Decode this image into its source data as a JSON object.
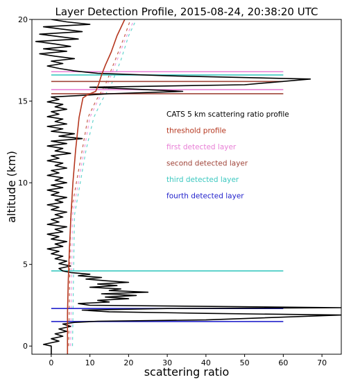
{
  "chart_data": {
    "type": "line",
    "title": "Layer Detection Profile, 2015-08-24, 20:38:20 UTC",
    "xlabel": "scattering ratio",
    "ylabel": "altitude (km)",
    "xlim": [
      -5,
      75
    ],
    "ylim": [
      -0.5,
      20
    ],
    "xticks": [
      0,
      10,
      20,
      30,
      40,
      50,
      60,
      70
    ],
    "yticks": [
      0,
      5,
      10,
      15,
      20
    ],
    "xtick_labels": [
      "0",
      "10",
      "20",
      "30",
      "40",
      "50",
      "60",
      "70"
    ],
    "ytick_labels": [
      "0",
      "5",
      "10",
      "15",
      "20"
    ],
    "grid": false,
    "legend_placement": "center-right",
    "series": [
      {
        "name": "CATS 5 km scattering ratio profile",
        "color": "#000000",
        "style": "solid",
        "points": [
          [
            0,
            -0.5
          ],
          [
            0,
            0.0
          ],
          [
            -2,
            0.1
          ],
          [
            0,
            0.2
          ],
          [
            2,
            0.3
          ],
          [
            0,
            0.45
          ],
          [
            3,
            0.6
          ],
          [
            1,
            0.75
          ],
          [
            4,
            0.9
          ],
          [
            2,
            1.05
          ],
          [
            5,
            1.2
          ],
          [
            3,
            1.35
          ],
          [
            6,
            1.45
          ],
          [
            12,
            1.52
          ],
          [
            40,
            1.6
          ],
          [
            75,
            1.9
          ],
          [
            40,
            2.0
          ],
          [
            15,
            2.1
          ],
          [
            8,
            2.2
          ],
          [
            30,
            2.3
          ],
          [
            75,
            2.35
          ],
          [
            30,
            2.45
          ],
          [
            10,
            2.5
          ],
          [
            7,
            2.6
          ],
          [
            15,
            2.7
          ],
          [
            12,
            2.8
          ],
          [
            20,
            2.9
          ],
          [
            14,
            3.0
          ],
          [
            22,
            3.1
          ],
          [
            13,
            3.2
          ],
          [
            25,
            3.3
          ],
          [
            15,
            3.4
          ],
          [
            18,
            3.5
          ],
          [
            10,
            3.6
          ],
          [
            17,
            3.7
          ],
          [
            12,
            3.8
          ],
          [
            20,
            3.9
          ],
          [
            14,
            4.0
          ],
          [
            9,
            4.1
          ],
          [
            13,
            4.2
          ],
          [
            7,
            4.3
          ],
          [
            10,
            4.4
          ],
          [
            5,
            4.5
          ],
          [
            3,
            4.6
          ],
          [
            2,
            4.75
          ],
          [
            5,
            4.9
          ],
          [
            2,
            5.05
          ],
          [
            4,
            5.2
          ],
          [
            1,
            5.35
          ],
          [
            3,
            5.5
          ],
          [
            0,
            5.65
          ],
          [
            2,
            5.8
          ],
          [
            -1,
            5.95
          ],
          [
            3,
            6.1
          ],
          [
            1,
            6.25
          ],
          [
            4,
            6.4
          ],
          [
            0,
            6.55
          ],
          [
            2,
            6.7
          ],
          [
            -1,
            6.85
          ],
          [
            3,
            7.0
          ],
          [
            1,
            7.15
          ],
          [
            4,
            7.3
          ],
          [
            -1,
            7.45
          ],
          [
            2,
            7.6
          ],
          [
            0,
            7.75
          ],
          [
            3,
            7.9
          ],
          [
            1,
            8.05
          ],
          [
            4,
            8.2
          ],
          [
            0,
            8.35
          ],
          [
            2,
            8.5
          ],
          [
            -1,
            8.65
          ],
          [
            3,
            8.8
          ],
          [
            1,
            8.95
          ],
          [
            4,
            9.1
          ],
          [
            0,
            9.25
          ],
          [
            2,
            9.4
          ],
          [
            -1,
            9.55
          ],
          [
            3,
            9.7
          ],
          [
            0,
            9.85
          ],
          [
            4,
            10.0
          ],
          [
            1,
            10.15
          ],
          [
            3,
            10.3
          ],
          [
            -1,
            10.45
          ],
          [
            2,
            10.6
          ],
          [
            0,
            10.75
          ],
          [
            4,
            10.9
          ],
          [
            1,
            11.05
          ],
          [
            3,
            11.2
          ],
          [
            -1,
            11.35
          ],
          [
            2,
            11.5
          ],
          [
            0,
            11.65
          ],
          [
            5,
            11.8
          ],
          [
            1,
            11.95
          ],
          [
            3,
            12.1
          ],
          [
            -1,
            12.25
          ],
          [
            4,
            12.4
          ],
          [
            0,
            12.55
          ],
          [
            8,
            12.7
          ],
          [
            2,
            12.85
          ],
          [
            6,
            13.0
          ],
          [
            0,
            13.15
          ],
          [
            3,
            13.3
          ],
          [
            -1,
            13.45
          ],
          [
            4,
            13.6
          ],
          [
            1,
            13.75
          ],
          [
            3,
            13.9
          ],
          [
            -1,
            14.05
          ],
          [
            2,
            14.2
          ],
          [
            0,
            14.35
          ],
          [
            4,
            14.5
          ],
          [
            1,
            14.65
          ],
          [
            3,
            14.8
          ],
          [
            -1,
            14.95
          ],
          [
            2,
            15.1
          ],
          [
            0,
            15.25
          ],
          [
            8,
            15.35
          ],
          [
            15,
            15.45
          ],
          [
            34,
            15.6
          ],
          [
            20,
            15.75
          ],
          [
            10,
            15.85
          ],
          [
            50,
            16.0
          ],
          [
            67,
            16.35
          ],
          [
            30,
            16.55
          ],
          [
            12,
            16.7
          ],
          [
            6,
            16.85
          ],
          [
            2,
            17.0
          ],
          [
            -1,
            17.15
          ],
          [
            3,
            17.3
          ],
          [
            0,
            17.45
          ],
          [
            6,
            17.6
          ],
          [
            1,
            17.75
          ],
          [
            -3,
            17.9
          ],
          [
            4,
            18.05
          ],
          [
            -2,
            18.2
          ],
          [
            5,
            18.35
          ],
          [
            1,
            18.5
          ],
          [
            -4,
            18.65
          ],
          [
            7,
            18.8
          ],
          [
            2,
            18.95
          ],
          [
            -3,
            19.1
          ],
          [
            8,
            19.25
          ],
          [
            3,
            19.4
          ],
          [
            -2,
            19.55
          ],
          [
            10,
            19.7
          ],
          [
            4,
            19.85
          ],
          [
            0,
            20.0
          ]
        ]
      },
      {
        "name": "threshold profile",
        "color": "#b5361e",
        "style": "solid",
        "points": [
          [
            4.2,
            -0.5
          ],
          [
            4.2,
            2.0
          ],
          [
            4.4,
            4.0
          ],
          [
            4.7,
            6.0
          ],
          [
            5.1,
            8.0
          ],
          [
            5.6,
            10.0
          ],
          [
            6.3,
            12.0
          ],
          [
            7.2,
            14.0
          ],
          [
            8.2,
            15.2
          ],
          [
            9.5,
            15.4
          ],
          [
            11.5,
            15.6
          ],
          [
            12.2,
            16.0
          ],
          [
            13.0,
            16.6
          ],
          [
            14.0,
            17.2
          ],
          [
            15.5,
            18.0
          ],
          [
            17.0,
            19.0
          ],
          [
            19.0,
            20.0
          ]
        ]
      }
    ],
    "dashed_guides": [
      {
        "color": "#e87fd6",
        "points": [
          [
            5,
            0
          ],
          [
            5.5,
            8.0
          ],
          [
            7,
            10.0
          ],
          [
            8.5,
            12.0
          ],
          [
            10.0,
            14.0
          ],
          [
            12.0,
            15.0
          ],
          [
            14.5,
            16.0
          ],
          [
            17.0,
            17.5
          ],
          [
            19.5,
            19.0
          ],
          [
            21.5,
            20.0
          ]
        ]
      },
      {
        "color": "#b5361e",
        "points": [
          [
            4.5,
            0
          ],
          [
            5.0,
            8.0
          ],
          [
            6.5,
            10.0
          ],
          [
            8.0,
            12.0
          ],
          [
            9.5,
            14.0
          ],
          [
            11.5,
            15.0
          ],
          [
            14.0,
            16.0
          ],
          [
            16.5,
            17.5
          ],
          [
            19.0,
            19.0
          ],
          [
            20.5,
            20.0
          ]
        ]
      },
      {
        "color": "#3cc8c0",
        "points": [
          [
            5.5,
            0
          ],
          [
            6.0,
            8.0
          ],
          [
            7.5,
            10.0
          ],
          [
            9.0,
            12.0
          ],
          [
            11.0,
            14.0
          ],
          [
            13.0,
            15.0
          ],
          [
            15.5,
            16.0
          ],
          [
            18.0,
            17.5
          ],
          [
            20.0,
            19.0
          ],
          [
            22.0,
            20.0
          ]
        ]
      }
    ],
    "layers": [
      {
        "name": "first detected layer",
        "color": "#e87fd6",
        "altitudes": [
          16.8,
          15.7
        ]
      },
      {
        "name": "second detected layer",
        "color": "#a0453a",
        "altitudes": [
          16.2,
          15.45
        ]
      },
      {
        "name": "third detected layer",
        "color": "#3cc8c0",
        "altitudes": [
          16.6,
          4.6
        ]
      },
      {
        "name": "fourth detected layer",
        "color": "#2222cc",
        "altitudes": [
          2.3,
          1.5
        ]
      }
    ],
    "layer_x_range": [
      0,
      60
    ],
    "legend": [
      {
        "label": "CATS 5 km scattering ratio profile",
        "color": "#000000"
      },
      {
        "label": "threshold profile",
        "color": "#b5361e"
      },
      {
        "label": "first detected layer",
        "color": "#e87fd6"
      },
      {
        "label": "second detected layer",
        "color": "#a0453a"
      },
      {
        "label": "third detected layer",
        "color": "#3cc8c0"
      },
      {
        "label": "fourth detected layer",
        "color": "#2222cc"
      }
    ]
  }
}
